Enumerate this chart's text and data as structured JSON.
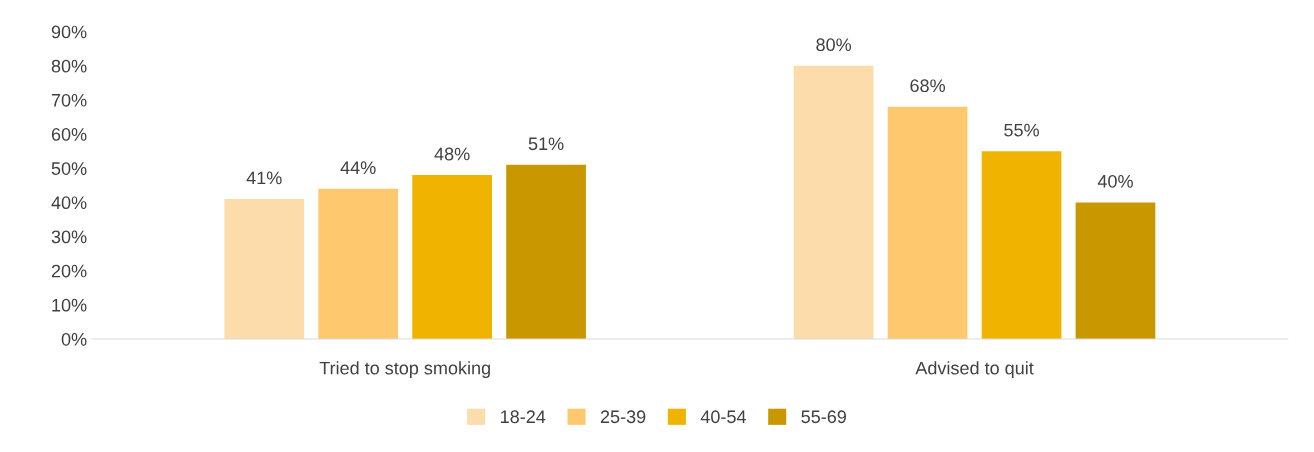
{
  "chart_data": {
    "type": "bar",
    "categories": [
      "Tried to stop smoking",
      "Advised to quit"
    ],
    "series": [
      {
        "name": "18-24",
        "color": "#fddcab",
        "values": [
          41,
          80
        ],
        "value_labels": [
          "41%",
          "80%"
        ]
      },
      {
        "name": "25-39",
        "color": "#fec96e",
        "values": [
          44,
          68
        ],
        "value_labels": [
          "44%",
          "68%"
        ]
      },
      {
        "name": "40-54",
        "color": "#f0b400",
        "values": [
          48,
          55
        ],
        "value_labels": [
          "48%",
          "55%"
        ]
      },
      {
        "name": "55-69",
        "color": "#c99700",
        "values": [
          51,
          40
        ],
        "value_labels": [
          "51%",
          "40%"
        ]
      }
    ],
    "ylim": [
      0,
      90
    ],
    "yticks": [
      {
        "value": 0,
        "label": "0%"
      },
      {
        "value": 10,
        "label": "10%"
      },
      {
        "value": 20,
        "label": "20%"
      },
      {
        "value": 30,
        "label": "30%"
      },
      {
        "value": 40,
        "label": "40%"
      },
      {
        "value": 50,
        "label": "50%"
      },
      {
        "value": 60,
        "label": "60%"
      },
      {
        "value": 70,
        "label": "70%"
      },
      {
        "value": 80,
        "label": "80%"
      },
      {
        "value": 90,
        "label": "90%"
      }
    ],
    "grid": false,
    "legend": "bottom"
  }
}
